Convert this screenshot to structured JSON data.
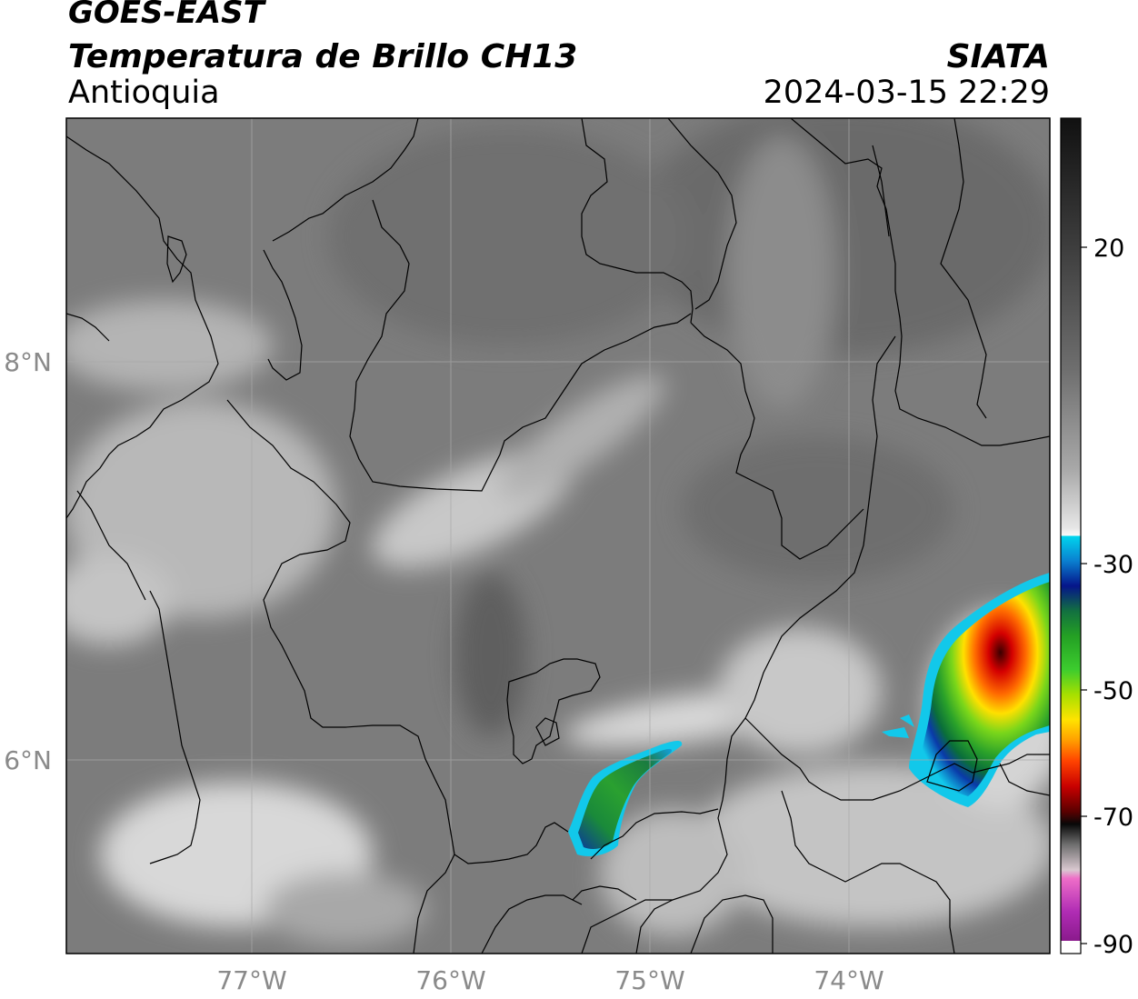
{
  "title": {
    "satellite": "GOES-EAST",
    "product": "Temperatura de Brillo CH13",
    "region": "Antioquia",
    "source": "SIATA",
    "datetime": "2024-03-15 22:29"
  },
  "axes": {
    "lon_ticks": [
      {
        "value": -77,
        "label": "77°W"
      },
      {
        "value": -76,
        "label": "76°W"
      },
      {
        "value": -75,
        "label": "75°W"
      },
      {
        "value": -74,
        "label": "74°W"
      }
    ],
    "lat_ticks": [
      {
        "value": 8,
        "label": "8°N"
      },
      {
        "value": 6,
        "label": "6°N"
      }
    ],
    "lon_range": [
      -77.95,
      -72.98
    ],
    "lat_range": [
      5.05,
      9.22
    ],
    "grid": true
  },
  "colorbar": {
    "ticks": [
      {
        "value": 20,
        "label": "20"
      },
      {
        "value": -30,
        "label": "-30"
      },
      {
        "value": -50,
        "label": "-50"
      },
      {
        "value": -70,
        "label": "-70"
      },
      {
        "value": -90,
        "label": "-90"
      }
    ],
    "range": [
      -92,
      40
    ]
  },
  "colors": {
    "background_gray": "#7c7c7c",
    "cold_green": "#2aa12a",
    "cold_yellow": "#ffe800",
    "cold_red": "#d40000",
    "border_line": "#000000"
  }
}
